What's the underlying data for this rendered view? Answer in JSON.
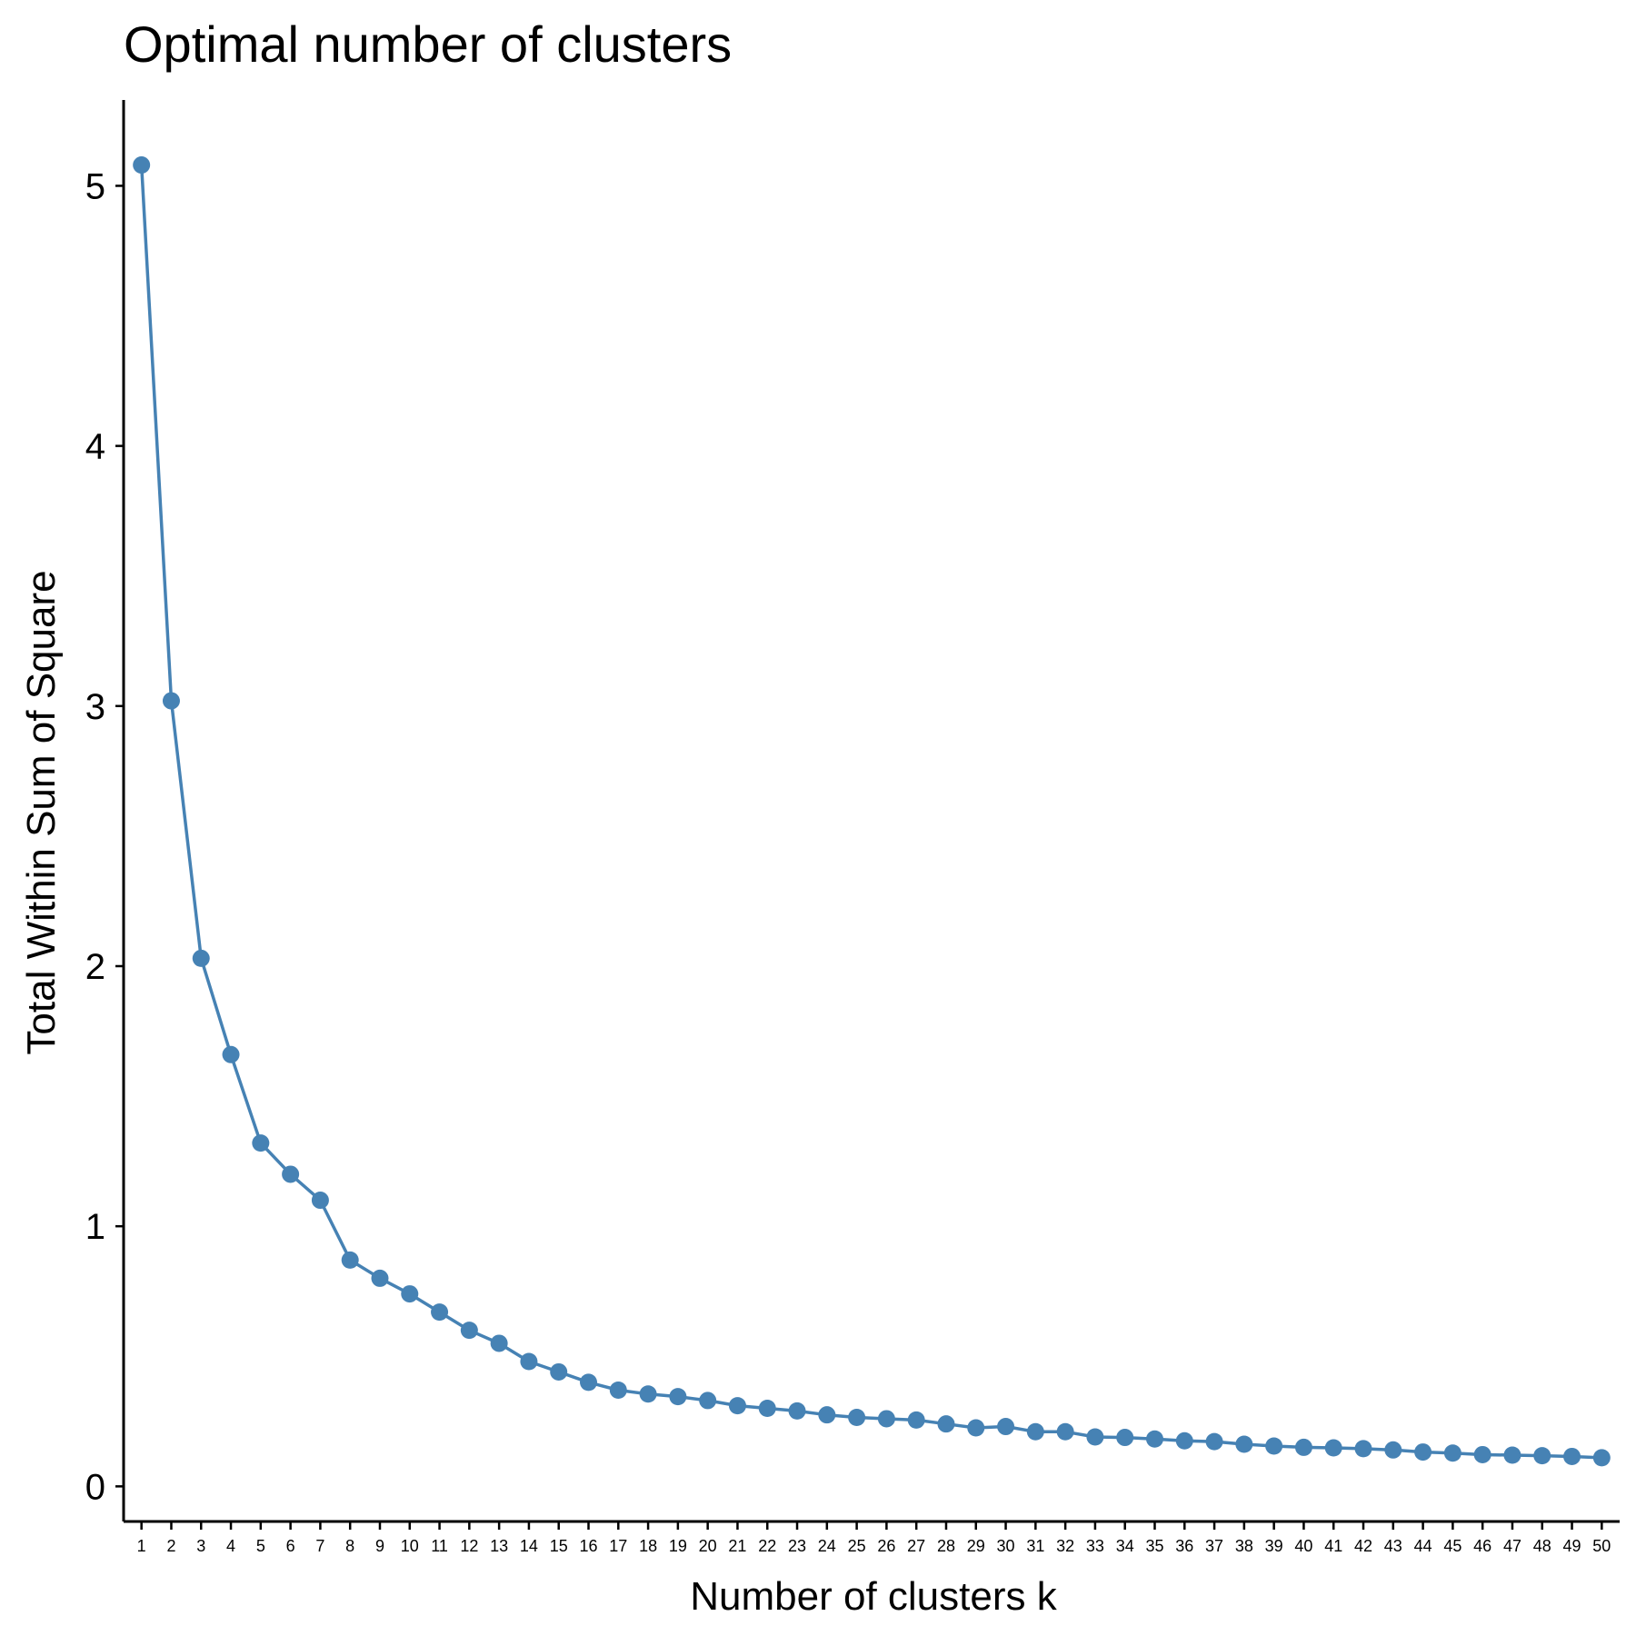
{
  "chart_data": {
    "type": "line",
    "title": "Optimal number of clusters",
    "xlabel": "Number of clusters k",
    "ylabel": "Total Within Sum of Square",
    "x": [
      1,
      2,
      3,
      4,
      5,
      6,
      7,
      8,
      9,
      10,
      11,
      12,
      13,
      14,
      15,
      16,
      17,
      18,
      19,
      20,
      21,
      22,
      23,
      24,
      25,
      26,
      27,
      28,
      29,
      30,
      31,
      32,
      33,
      34,
      35,
      36,
      37,
      38,
      39,
      40,
      41,
      42,
      43,
      44,
      45,
      46,
      47,
      48,
      49,
      50
    ],
    "series": [
      {
        "values": [
          5.08,
          3.02,
          2.03,
          1.66,
          1.32,
          1.2,
          1.1,
          0.87,
          0.8,
          0.74,
          0.67,
          0.6,
          0.55,
          0.48,
          0.44,
          0.4,
          0.37,
          0.355,
          0.345,
          0.33,
          0.31,
          0.3,
          0.29,
          0.275,
          0.265,
          0.26,
          0.255,
          0.24,
          0.225,
          0.23,
          0.21,
          0.21,
          0.19,
          0.188,
          0.182,
          0.175,
          0.172,
          0.162,
          0.155,
          0.15,
          0.148,
          0.145,
          0.14,
          0.132,
          0.128,
          0.122,
          0.12,
          0.118,
          0.115,
          0.11
        ]
      }
    ],
    "yticks": [
      0,
      1,
      2,
      3,
      4,
      5
    ],
    "xlim": [
      0.4,
      50.6
    ],
    "ylim": [
      -0.135,
      5.33
    ],
    "grid": false,
    "colors": {
      "line": "#4682B4",
      "point": "#4682B4",
      "axis": "#000000"
    }
  }
}
